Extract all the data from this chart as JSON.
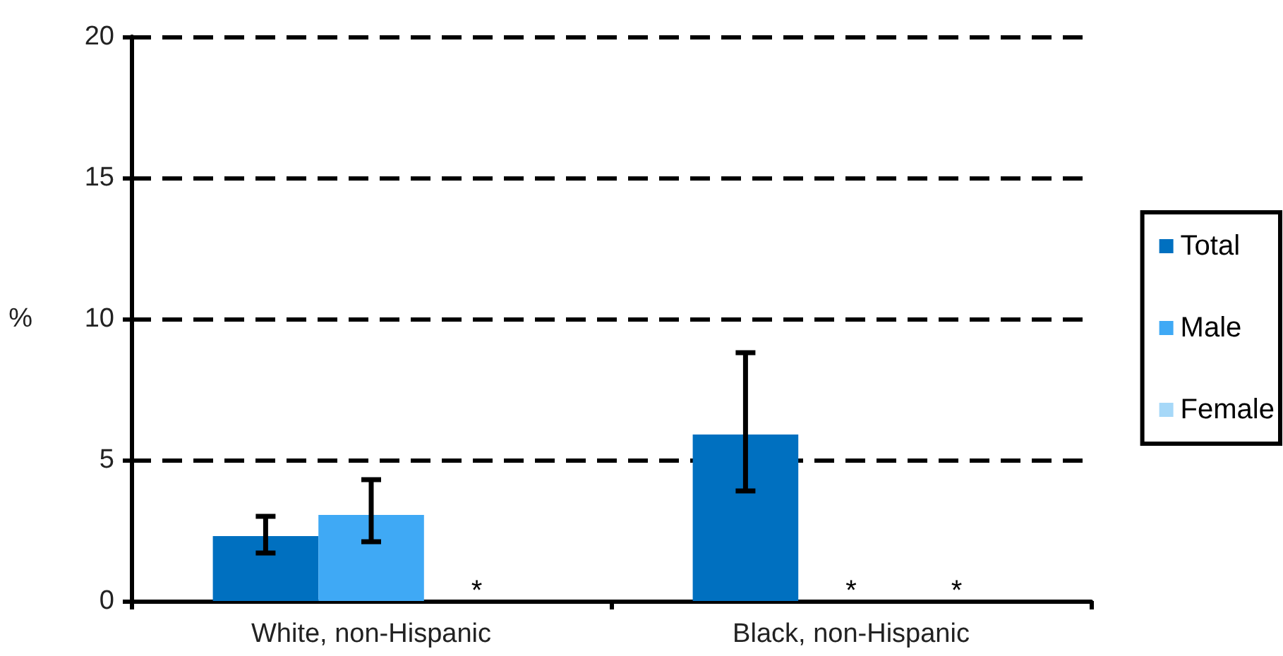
{
  "chart_data": {
    "type": "bar",
    "ylabel": "%",
    "categories": [
      "White, non-Hispanic",
      "Black, non-Hispanic"
    ],
    "series": [
      {
        "name": "Total",
        "color": "#0070c0",
        "values": [
          2.3,
          5.9
        ],
        "errors": [
          [
            1.7,
            3.0
          ],
          [
            3.9,
            8.8
          ]
        ]
      },
      {
        "name": "Male",
        "color": "#3fa9f5",
        "values": [
          3.05,
          null
        ],
        "errors": [
          [
            2.1,
            4.3
          ],
          null
        ],
        "value_labels": [
          null,
          "*"
        ]
      },
      {
        "name": "Female",
        "color": "#a6d8f8",
        "values": [
          null,
          null
        ],
        "value_labels": [
          "*",
          "*"
        ]
      }
    ],
    "ylim": [
      0,
      20
    ],
    "yticks": [
      0,
      5,
      10,
      15,
      20
    ],
    "grid": "y",
    "legend": "right"
  }
}
